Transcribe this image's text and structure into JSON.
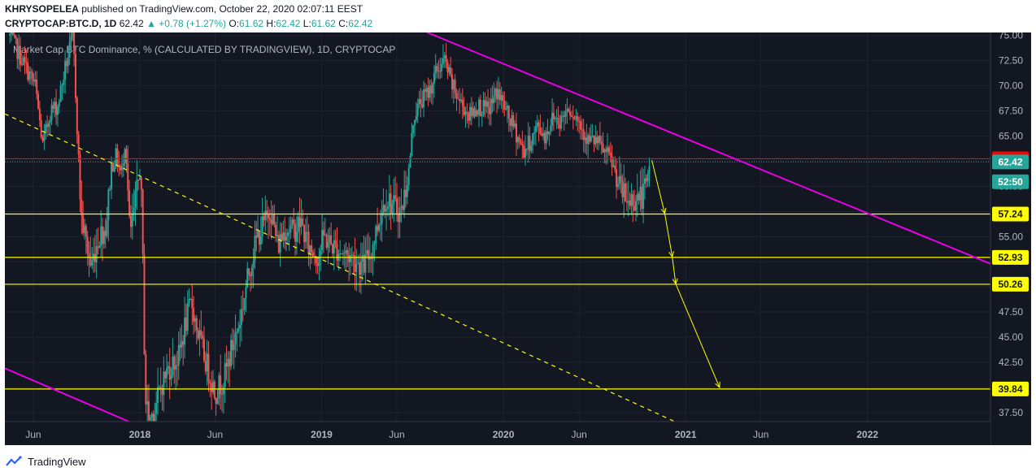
{
  "header": {
    "author": "KHRYSOPELEA",
    "published": "published on TradingView.com, October 22, 2020 02:07:11 EEST",
    "symbol": "CRYPTOCAP:BTC.D, 1D",
    "last": "62.42",
    "change": "+0.78 (+1.27%)",
    "open_label": "O:",
    "open": "61.62",
    "high_label": "H:",
    "high": "62.42",
    "low_label": "L:",
    "low": "61.62",
    "close_label": "C:",
    "close": "62.42"
  },
  "footer": {
    "brand": "TradingView"
  },
  "colors": {
    "background": "#131722",
    "grid": "#1f2330",
    "axis_text": "#b2b5be",
    "up": "#26a69a",
    "down": "#ef5350",
    "trendline": "#e600e6",
    "support": "#ffff00",
    "resistance": "#ff0000"
  },
  "chart_data": {
    "type": "candlestick",
    "title": "Market Cap BTC Dominance, % (CALCULATED BY TRADINGVIEW), 1D, CRYPTOCAP",
    "xlabel": "",
    "ylabel": "",
    "ylim": [
      36.6,
      75.3
    ],
    "xlim": [
      "2017-04-05",
      "2022-09-05"
    ],
    "y_ticks": [
      "75.00",
      "72.50",
      "70.00",
      "67.50",
      "65.00",
      "62.50",
      "60.00",
      "57.50",
      "55.00",
      "52.50",
      "50.00",
      "47.50",
      "45.00",
      "42.50",
      "40.00",
      "37.50"
    ],
    "x_ticks": [
      {
        "date": "2017-06-01",
        "label": "Jun",
        "bold": false
      },
      {
        "date": "2018-01-01",
        "label": "2018",
        "bold": true
      },
      {
        "date": "2018-06-01",
        "label": "Jun",
        "bold": false
      },
      {
        "date": "2019-01-01",
        "label": "2019",
        "bold": true
      },
      {
        "date": "2019-06-01",
        "label": "Jun",
        "bold": false
      },
      {
        "date": "2020-01-01",
        "label": "2020",
        "bold": true
      },
      {
        "date": "2020-06-01",
        "label": "Jun",
        "bold": false
      },
      {
        "date": "2021-01-01",
        "label": "2021",
        "bold": true
      },
      {
        "date": "2021-06-01",
        "label": "Jun",
        "bold": false
      },
      {
        "date": "2022-01-01",
        "label": "2022",
        "bold": true
      }
    ],
    "price_path": [
      [
        "2017-04-15",
        75.0
      ],
      [
        "2017-05-15",
        72.0
      ],
      [
        "2017-06-05",
        70.0
      ],
      [
        "2017-06-20",
        64.0
      ],
      [
        "2017-07-05",
        67.5
      ],
      [
        "2017-07-20",
        68.0
      ],
      [
        "2017-08-05",
        72.0
      ],
      [
        "2017-08-20",
        75.0
      ],
      [
        "2017-09-05",
        57.0
      ],
      [
        "2017-09-25",
        52.0
      ],
      [
        "2017-10-10",
        55.0
      ],
      [
        "2017-10-25",
        56.0
      ],
      [
        "2017-11-05",
        62.0
      ],
      [
        "2017-11-15",
        63.0
      ],
      [
        "2017-11-25",
        61.0
      ],
      [
        "2017-12-03",
        65.0
      ],
      [
        "2017-12-12",
        55.0
      ],
      [
        "2017-12-22",
        58.0
      ],
      [
        "2018-01-02",
        62.0
      ],
      [
        "2018-01-06",
        55.0
      ],
      [
        "2018-01-12",
        39.0
      ],
      [
        "2018-01-20",
        36.8
      ],
      [
        "2018-02-01",
        38.0
      ],
      [
        "2018-02-15",
        40.5
      ],
      [
        "2018-03-01",
        42.0
      ],
      [
        "2018-03-20",
        43.0
      ],
      [
        "2018-04-01",
        46.0
      ],
      [
        "2018-04-15",
        48.5
      ],
      [
        "2018-04-25",
        46.0
      ],
      [
        "2018-05-05",
        44.0
      ],
      [
        "2018-05-20",
        41.5
      ],
      [
        "2018-06-01",
        39.5
      ],
      [
        "2018-06-20",
        41.0
      ],
      [
        "2018-07-05",
        44.0
      ],
      [
        "2018-07-20",
        46.5
      ],
      [
        "2018-08-10",
        52.0
      ],
      [
        "2018-08-25",
        55.0
      ],
      [
        "2018-09-10",
        56.5
      ],
      [
        "2018-09-20",
        58.0
      ],
      [
        "2018-10-05",
        54.0
      ],
      [
        "2018-10-20",
        56.0
      ],
      [
        "2018-11-05",
        55.5
      ],
      [
        "2018-11-20",
        56.5
      ],
      [
        "2018-12-05",
        54.0
      ],
      [
        "2018-12-25",
        53.0
      ],
      [
        "2019-01-05",
        55.0
      ],
      [
        "2019-01-25",
        54.0
      ],
      [
        "2019-02-10",
        53.5
      ],
      [
        "2019-03-01",
        53.0
      ],
      [
        "2019-03-25",
        52.0
      ],
      [
        "2019-04-10",
        53.5
      ],
      [
        "2019-04-25",
        56.5
      ],
      [
        "2019-05-10",
        59.0
      ],
      [
        "2019-05-25",
        58.0
      ],
      [
        "2019-06-10",
        57.5
      ],
      [
        "2019-06-25",
        61.5
      ],
      [
        "2019-07-05",
        67.0
      ],
      [
        "2019-07-20",
        68.5
      ],
      [
        "2019-08-05",
        69.5
      ],
      [
        "2019-08-20",
        71.5
      ],
      [
        "2019-09-05",
        72.5
      ],
      [
        "2019-09-20",
        70.0
      ],
      [
        "2019-10-05",
        68.5
      ],
      [
        "2019-10-25",
        67.0
      ],
      [
        "2019-11-10",
        68.0
      ],
      [
        "2019-12-01",
        67.5
      ],
      [
        "2019-12-20",
        69.5
      ],
      [
        "2020-01-10",
        67.0
      ],
      [
        "2020-01-25",
        65.5
      ],
      [
        "2020-02-10",
        63.5
      ],
      [
        "2020-02-25",
        64.5
      ],
      [
        "2020-03-10",
        66.0
      ],
      [
        "2020-03-25",
        65.0
      ],
      [
        "2020-04-10",
        67.0
      ],
      [
        "2020-04-25",
        66.5
      ],
      [
        "2020-05-10",
        68.0
      ],
      [
        "2020-05-25",
        67.0
      ],
      [
        "2020-06-05",
        66.0
      ],
      [
        "2020-06-20",
        64.5
      ],
      [
        "2020-07-05",
        64.5
      ],
      [
        "2020-07-20",
        63.5
      ],
      [
        "2020-08-05",
        62.5
      ],
      [
        "2020-08-20",
        60.0
      ],
      [
        "2020-09-05",
        58.5
      ],
      [
        "2020-09-20",
        58.8
      ],
      [
        "2020-10-05",
        59.0
      ],
      [
        "2020-10-15",
        60.0
      ],
      [
        "2020-10-21",
        62.42
      ]
    ],
    "horizontal_levels": [
      {
        "name": "resistance",
        "value": 62.74,
        "label": "62.74",
        "color": "#ff0000"
      },
      {
        "name": "support-1",
        "value": 57.24,
        "label": "57.24",
        "color": "#ffff00"
      },
      {
        "name": "support-2",
        "value": 52.93,
        "label": "52.93",
        "color": "#ffff00"
      },
      {
        "name": "support-3",
        "value": 50.26,
        "label": "50.26",
        "color": "#ffff00"
      },
      {
        "name": "support-4",
        "value": 39.84,
        "label": "39.84",
        "color": "#ffff00"
      }
    ],
    "price_labels": [
      {
        "name": "last-price",
        "value": 62.42,
        "label": "62.42",
        "color": "#26a69a"
      },
      {
        "name": "countdown",
        "value": 60.45,
        "label": "52:50",
        "color": "#26a69a"
      }
    ],
    "trendlines": [
      {
        "name": "upper-trendline",
        "style": "solid",
        "color": "#e600e6",
        "points": [
          [
            "2019-08-01",
            75.3
          ],
          [
            "2022-09-05",
            52.3
          ]
        ]
      },
      {
        "name": "lower-trendline",
        "style": "solid",
        "color": "#e600e6",
        "points": [
          [
            "2017-04-05",
            41.9
          ],
          [
            "2017-12-10",
            36.6
          ]
        ]
      },
      {
        "name": "dashed-trendline",
        "style": "dashed",
        "color": "#ffff00",
        "points": [
          [
            "2017-04-05",
            67.2
          ],
          [
            "2020-12-10",
            36.6
          ]
        ]
      }
    ],
    "arrows": [
      {
        "from": [
          "2020-10-25",
          62.6
        ],
        "to": [
          "2020-11-20",
          57.3
        ]
      },
      {
        "from": [
          "2020-11-20",
          57.3
        ],
        "to": [
          "2020-12-05",
          53.0
        ]
      },
      {
        "from": [
          "2020-12-05",
          53.0
        ],
        "to": [
          "2020-12-12",
          50.3
        ]
      },
      {
        "from": [
          "2020-12-12",
          50.3
        ],
        "to": [
          "2021-03-10",
          40.0
        ]
      }
    ]
  }
}
